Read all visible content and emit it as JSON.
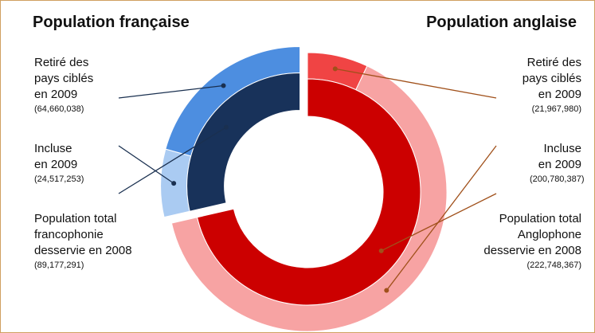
{
  "chart_data": {
    "type": "donut",
    "series": [
      {
        "name": "Population française",
        "categories": [
          "Retiré des pays ciblés en 2009",
          "Incluse en 2009",
          "Population total francophonie desservie en 2008"
        ],
        "values": [
          64660038,
          24517253,
          89177291
        ],
        "value_labels": [
          "(64,660,038)",
          "(24,517,253)",
          "(89,177,291)"
        ],
        "colors": [
          "#4d8ee0",
          "#aacbf2",
          "#18325a"
        ]
      },
      {
        "name": "Population anglaise",
        "categories": [
          "Retiré des pays ciblés en 2009",
          "Incluse en 2009",
          "Population total Anglophone desservie en 2008"
        ],
        "values": [
          21967980,
          200780387,
          222748367
        ],
        "value_labels": [
          "(21,967,980)",
          "(200,780,387)",
          "(222,748,367)"
        ],
        "colors": [
          "#f04444",
          "#f7a3a3",
          "#cc0000"
        ]
      }
    ]
  }
}
